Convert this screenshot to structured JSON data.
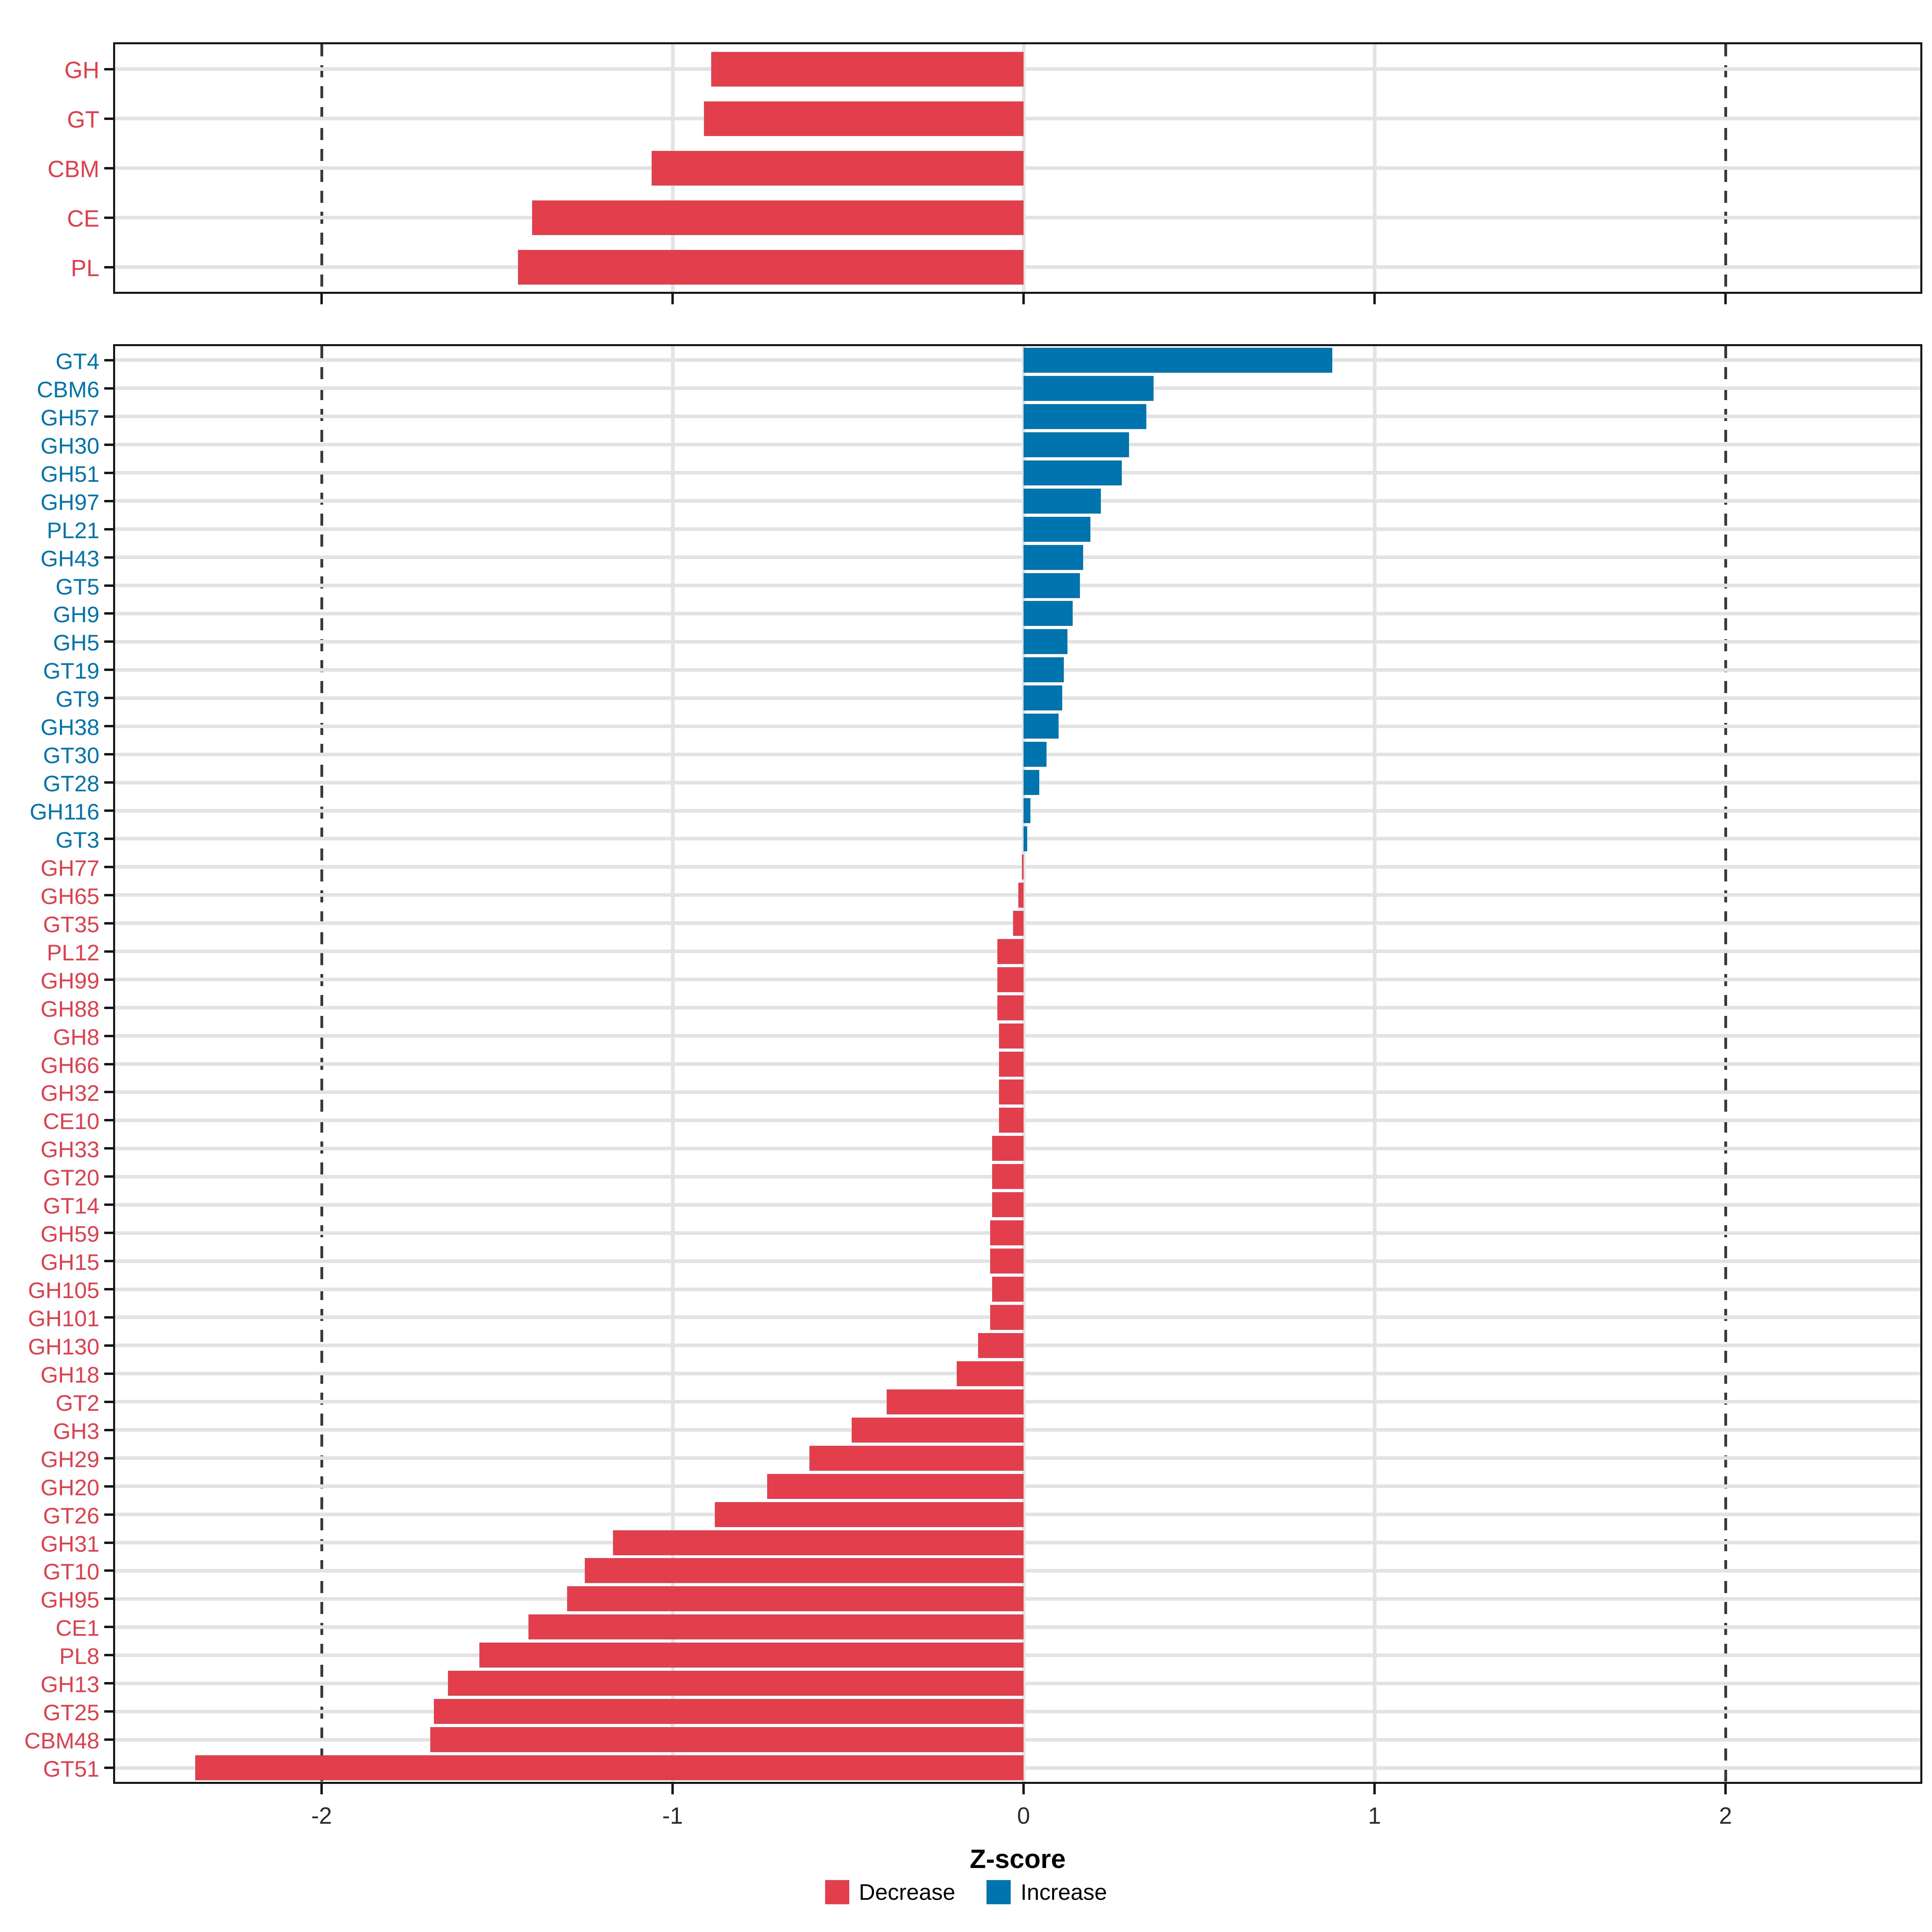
{
  "axis": {
    "xlabel": "Z-score",
    "ticks": [
      -2,
      -1,
      0,
      1,
      2
    ],
    "tick_labels": [
      "-2",
      "-1",
      "0",
      "1",
      "2"
    ],
    "xlim": [
      -2.6,
      2.56
    ],
    "light_grid_at": [
      -1,
      0,
      1
    ],
    "dashed_at": [
      -2,
      2
    ],
    "grid": true
  },
  "colors": {
    "decrease": "#e33e4c",
    "increase": "#0074af",
    "grid": "#e3e3e3",
    "dashed_line": "#3a3a3a",
    "panel_border": "#151515",
    "tick_text": "#2b2b2b"
  },
  "legend": {
    "position": "bottom-center",
    "items": [
      {
        "label": "Decrease",
        "color": "#e33e4c",
        "key": "decrease"
      },
      {
        "label": "Increase",
        "color": "#0074af",
        "key": "increase"
      }
    ]
  },
  "chart_data": [
    {
      "type": "bar",
      "orientation": "horizontal",
      "panel": "top",
      "title": "",
      "xlabel": "Z-score",
      "xlim": [
        -2.6,
        2.56
      ],
      "categories": [
        "GH",
        "GT",
        "CBM",
        "CE",
        "PL"
      ],
      "values": [
        -0.89,
        -0.91,
        -1.06,
        -1.4,
        -1.44
      ],
      "series_color_rule": "red (Decrease) for negative, blue (Increase) for positive"
    },
    {
      "type": "bar",
      "orientation": "horizontal",
      "panel": "bottom",
      "title": "",
      "xlabel": "Z-score",
      "xlim": [
        -2.6,
        2.56
      ],
      "categories": [
        "GT4",
        "CBM6",
        "GH57",
        "GH30",
        "GH51",
        "GH97",
        "PL21",
        "GH43",
        "GT5",
        "GH9",
        "GH5",
        "GT19",
        "GT9",
        "GH38",
        "GT30",
        "GT28",
        "GH116",
        "GT3",
        "GH77",
        "GH65",
        "GT35",
        "PL12",
        "GH99",
        "GH88",
        "GH8",
        "GH66",
        "GH32",
        "CE10",
        "GH33",
        "GT20",
        "GT14",
        "GH59",
        "GH15",
        "GH105",
        "GH101",
        "GH130",
        "GH18",
        "GT2",
        "GH3",
        "GH29",
        "GH20",
        "GT26",
        "GH31",
        "GT10",
        "GH95",
        "CE1",
        "PL8",
        "GH13",
        "GT25",
        "CBM48",
        "GT51"
      ],
      "values": [
        0.88,
        0.37,
        0.35,
        0.3,
        0.28,
        0.22,
        0.19,
        0.17,
        0.16,
        0.14,
        0.125,
        0.115,
        0.11,
        0.1,
        0.065,
        0.045,
        0.02,
        0.01,
        -0.005,
        -0.015,
        -0.03,
        -0.075,
        -0.075,
        -0.075,
        -0.07,
        -0.07,
        -0.07,
        -0.07,
        -0.09,
        -0.09,
        -0.09,
        -0.095,
        -0.095,
        -0.09,
        -0.095,
        -0.13,
        -0.19,
        -0.39,
        -0.49,
        -0.61,
        -0.73,
        -0.88,
        -1.17,
        -1.25,
        -1.3,
        -1.41,
        -1.55,
        -1.64,
        -1.68,
        -1.69,
        -2.36
      ],
      "series_color_rule": "red (Decrease) for negative, blue (Increase) for positive"
    }
  ]
}
